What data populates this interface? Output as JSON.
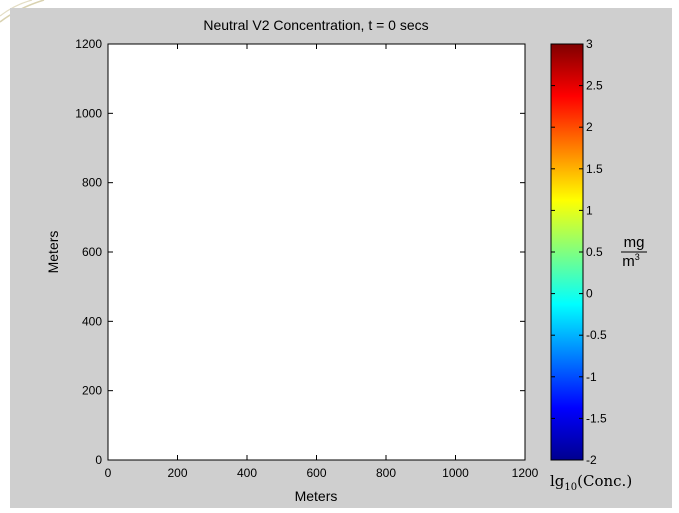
{
  "chart_data": {
    "type": "heatmap",
    "title": "Neutral V2 Concentration, t = 0 secs",
    "xlabel": "Meters",
    "ylabel": "Meters",
    "xlim": [
      0,
      1200
    ],
    "ylim": [
      0,
      1200
    ],
    "xticks": [
      "0",
      "200",
      "400",
      "600",
      "800",
      "1000",
      "1200"
    ],
    "yticks": [
      "0",
      "200",
      "400",
      "600",
      "800",
      "1000",
      "1200"
    ],
    "values": [],
    "background": "#ffffff",
    "colorbar": {
      "colormap": "jet",
      "range": [
        -2,
        3
      ],
      "ticks": [
        "-2",
        "-1.5",
        "-1",
        "-0.5",
        "0",
        "0.5",
        "1",
        "1.5",
        "2",
        "2.5",
        "3"
      ],
      "label": "lg10(Conc.)",
      "label_base": "lg",
      "label_sub": "10",
      "label_arg": "(Conc.)",
      "unit_num": "mg",
      "unit_den": "m",
      "unit_den_exp": "3"
    }
  }
}
